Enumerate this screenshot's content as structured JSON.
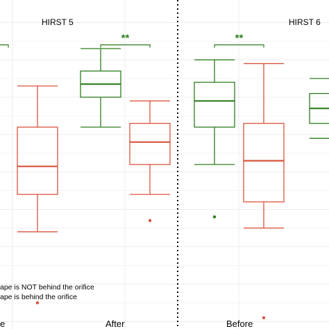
{
  "chart_data": {
    "type": "boxplot",
    "panels": [
      {
        "title": "HIRST 5",
        "categories": [
          "Before",
          "After"
        ],
        "category_labels_shown": [
          "e",
          "After"
        ],
        "boxes": [
          {
            "category": "Before",
            "group": "red",
            "min": 24,
            "q1": 34,
            "median": 41.5,
            "q3": 52,
            "max": 63,
            "outliers": [
              5
            ]
          },
          {
            "category": "After",
            "group": "green",
            "min": 52,
            "q1": 60,
            "median": 63.5,
            "q3": 67,
            "max": 73,
            "outliers": []
          },
          {
            "category": "After",
            "group": "red",
            "min": 34,
            "q1": 42,
            "median": 48,
            "q3": 53,
            "max": 59,
            "outliers": [
              27
            ]
          }
        ],
        "significance": [
          {
            "label": "**",
            "category": "After"
          }
        ]
      },
      {
        "title": "HIRST 6",
        "categories": [
          "Before",
          "After"
        ],
        "category_labels_shown": [
          "Before",
          ""
        ],
        "boxes": [
          {
            "category": "Before",
            "group": "green",
            "min": 42,
            "q1": 52,
            "median": 59,
            "q3": 64,
            "max": 70,
            "outliers": [
              28
            ]
          },
          {
            "category": "Before",
            "group": "red",
            "min": 25,
            "q1": 32,
            "median": 43,
            "q3": 53,
            "max": 69,
            "outliers": [
              1
            ]
          },
          {
            "category": "After",
            "group": "green",
            "min": 49,
            "q1": 53,
            "median": 57,
            "q3": 61,
            "max": 65,
            "outliers": []
          }
        ],
        "significance": [
          {
            "label": "**",
            "category": "Before"
          }
        ]
      }
    ],
    "legend": [
      {
        "group": "green",
        "label": "ape is NOT behind the orifice"
      },
      {
        "group": "red",
        "label": "ape is behind the orifice"
      }
    ],
    "ylim": [
      -2,
      86
    ],
    "grid": true,
    "colors": {
      "green": "#2e7d1e",
      "red": "#d9533c"
    }
  }
}
